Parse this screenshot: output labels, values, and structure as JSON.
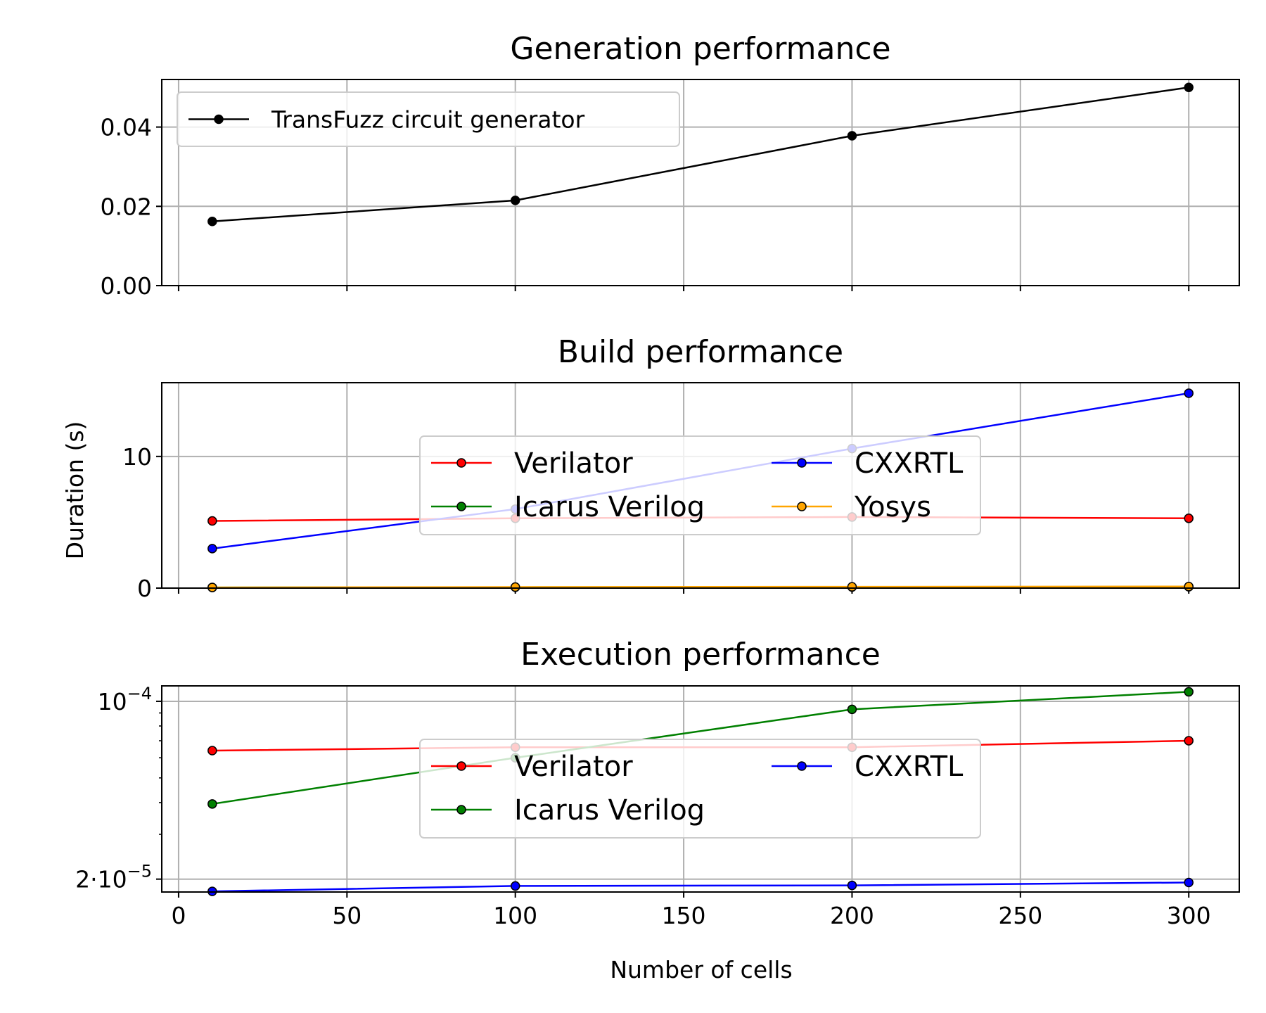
{
  "figure": {
    "xlabel": "Number of cells",
    "ylabel": "Duration (s)"
  },
  "chart_data": [
    {
      "type": "line",
      "title": "Generation performance",
      "xlim": [
        -5,
        315
      ],
      "ylim": [
        0,
        0.052
      ],
      "yscale": "linear",
      "xticks": [
        0,
        50,
        100,
        150,
        200,
        250,
        300
      ],
      "yticks": [
        {
          "value": 0.0,
          "label": "0.00"
        },
        {
          "value": 0.02,
          "label": "0.02"
        },
        {
          "value": 0.04,
          "label": "0.04"
        }
      ],
      "grid": true,
      "legend": {
        "placement": "top-left",
        "ncol": 1
      },
      "series": [
        {
          "name": "TransFuzz circuit generator",
          "color": "#000000",
          "x": [
            10,
            100,
            200,
            300
          ],
          "y": [
            0.0162,
            0.0215,
            0.0378,
            0.05
          ]
        }
      ]
    },
    {
      "type": "line",
      "title": "Build performance",
      "ylabel": "Duration (s)",
      "xlim": [
        -5,
        315
      ],
      "ylim": [
        0,
        15.6
      ],
      "yscale": "linear",
      "xticks": [
        0,
        50,
        100,
        150,
        200,
        250,
        300
      ],
      "yticks": [
        {
          "value": 0,
          "label": "0"
        },
        {
          "value": 10,
          "label": "10"
        }
      ],
      "grid": true,
      "legend": {
        "placement": "center",
        "ncol": 2
      },
      "series": [
        {
          "name": "Verilator",
          "color": "#ff0000",
          "x": [
            10,
            100,
            200,
            300
          ],
          "y": [
            5.1,
            5.3,
            5.4,
            5.3
          ]
        },
        {
          "name": "Icarus Verilog",
          "color": "#008000",
          "x": [
            10,
            100,
            200,
            300
          ],
          "y": [
            0.05,
            0.07,
            0.08,
            0.1
          ]
        },
        {
          "name": "CXXRTL",
          "color": "#0000ff",
          "x": [
            10,
            100,
            200,
            300
          ],
          "y": [
            3.0,
            6.0,
            10.6,
            14.8
          ]
        },
        {
          "name": "Yosys",
          "color": "#ffa500",
          "x": [
            10,
            100,
            200,
            300
          ],
          "y": [
            0.05,
            0.08,
            0.1,
            0.12
          ]
        }
      ]
    },
    {
      "type": "line",
      "title": "Execution performance",
      "xlabel": "Number of cells",
      "xlim": [
        -5,
        315
      ],
      "ylim": [
        1.78e-05,
        0.000115
      ],
      "yscale": "log",
      "xticks": [
        0,
        50,
        100,
        150,
        200,
        250,
        300
      ],
      "yticks": [
        {
          "value": 2e-05,
          "base": "2·10",
          "exp": "−5"
        },
        {
          "value": 0.0001,
          "base": "10",
          "exp": "−4"
        }
      ],
      "grid": true,
      "legend": {
        "placement": "center",
        "ncol": 2
      },
      "series": [
        {
          "name": "Verilator",
          "color": "#ff0000",
          "x": [
            10,
            100,
            200,
            300
          ],
          "y": [
            6.4e-05,
            6.6e-05,
            6.6e-05,
            7e-05
          ]
        },
        {
          "name": "Icarus Verilog",
          "color": "#008000",
          "x": [
            10,
            100,
            200,
            300
          ],
          "y": [
            3.95e-05,
            6e-05,
            9.3e-05,
            0.000109
          ]
        },
        {
          "name": "CXXRTL",
          "color": "#0000ff",
          "x": [
            10,
            100,
            200,
            300
          ],
          "y": [
            1.79e-05,
            1.88e-05,
            1.89e-05,
            1.94e-05
          ]
        }
      ]
    }
  ]
}
